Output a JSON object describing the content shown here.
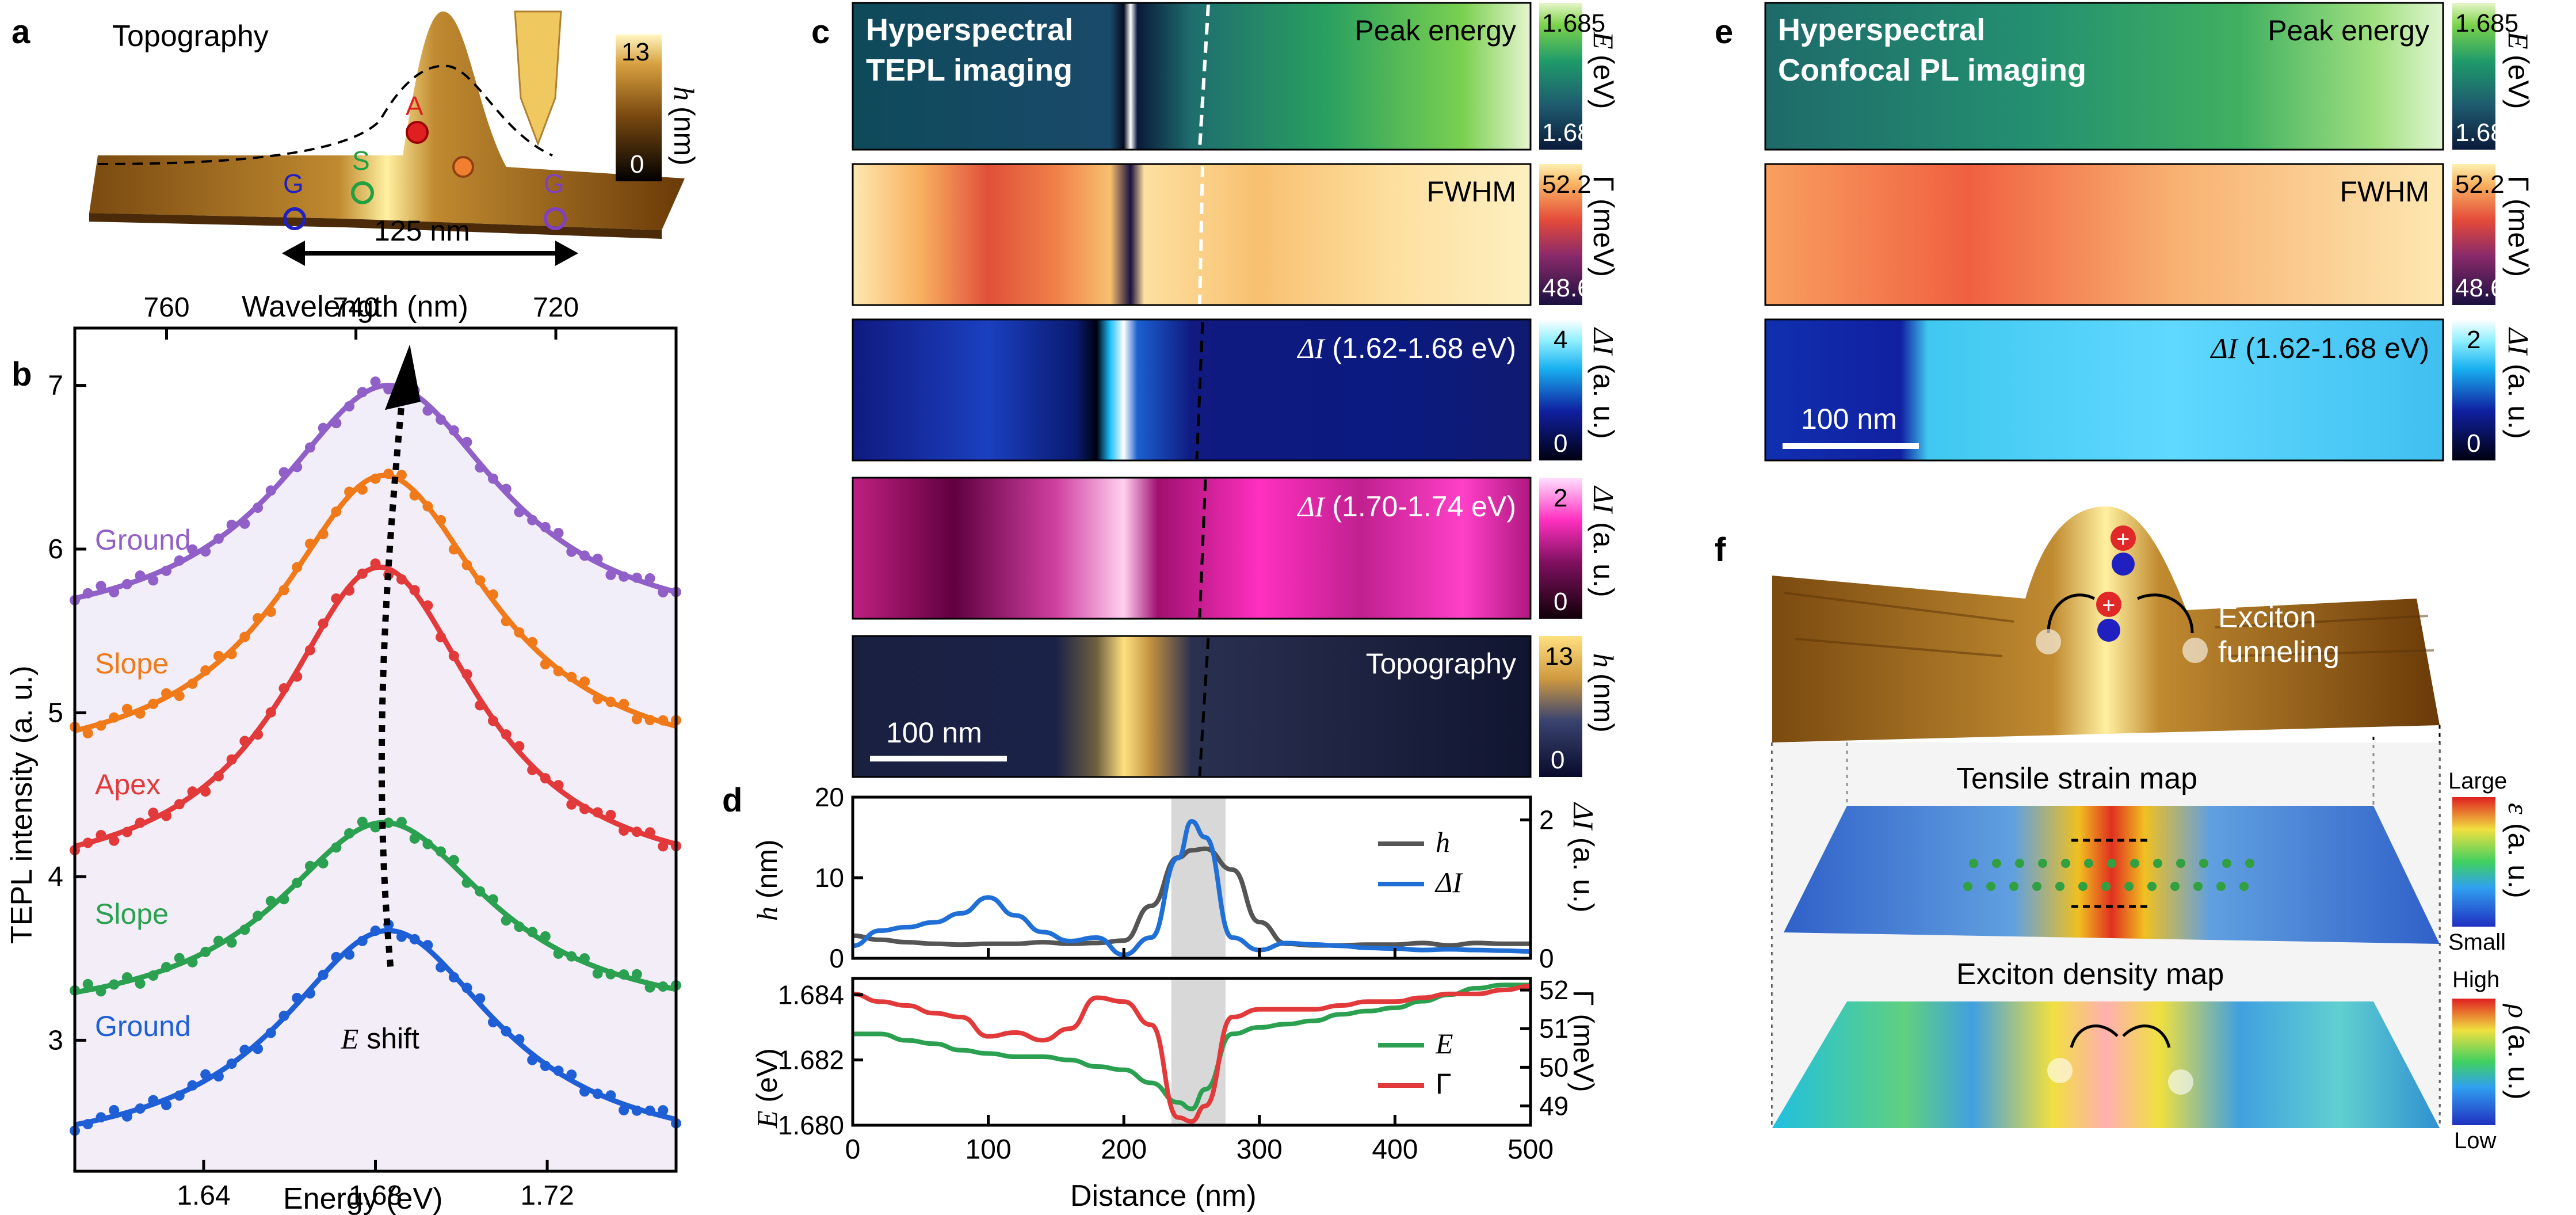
{
  "panels": {
    "a": "a",
    "b": "b",
    "c": "c",
    "d": "d",
    "e": "e",
    "f": "f"
  },
  "panel_a": {
    "title": "Topography",
    "point_labels": {
      "apex": "A",
      "slope": "S",
      "ground": "G",
      "ground2": "G"
    },
    "scale": "125 nm",
    "colorbar": {
      "max": "13",
      "min": "0",
      "label": "h",
      "unit": "(nm)"
    }
  },
  "panel_b": {
    "top_axis_title": "Wavelength (nm)",
    "top_ticks": [
      "760",
      "740",
      "720"
    ],
    "bottom_axis_title": "Energy (eV)",
    "bottom_ticks": [
      "1.64",
      "1.68",
      "1.72"
    ],
    "y_axis_title": "TEPL intensity (a. u.)",
    "y_ticks": [
      "3",
      "4",
      "5",
      "6",
      "7"
    ],
    "curve_labels": [
      "Ground",
      "Slope",
      "Apex",
      "Slope",
      "Ground"
    ],
    "shift_label": {
      "sym": "E",
      "text": " shift"
    }
  },
  "panel_c": {
    "title_line1": "Hyperspectral",
    "title_line2": "TEPL imaging",
    "maps": [
      {
        "label": "Peak energy",
        "cb_max": "1.685",
        "cb_min": "1.680",
        "cb_sym": "E",
        "cb_unit": "(eV)"
      },
      {
        "label": "FWHM",
        "cb_max": "52.2",
        "cb_min": "48.6",
        "cb_sym": "Γ",
        "cb_unit": "(meV)"
      },
      {
        "label_sym": "ΔI",
        "label": " (1.62-1.68 eV)",
        "cb_max": "4",
        "cb_min": "0",
        "cb_sym": "ΔI",
        "cb_unit": "(a. u.)"
      },
      {
        "label_sym": "ΔI",
        "label": " (1.70-1.74 eV)",
        "cb_max": "2",
        "cb_min": "0",
        "cb_sym": "ΔI",
        "cb_unit": "(a. u.)"
      },
      {
        "label": "Topography",
        "cb_max": "13",
        "cb_min": "0",
        "cb_sym": "h",
        "cb_unit": "(nm)"
      }
    ],
    "scale": "100 nm"
  },
  "panel_d": {
    "x_axis_title": "Distance (nm)",
    "x_ticks": [
      "0",
      "100",
      "200",
      "300",
      "400",
      "500"
    ],
    "top_left_title": "h (nm)",
    "top_left_ticks": [
      "0",
      "10",
      "20"
    ],
    "top_right_title": "ΔI (a. u.)",
    "top_right_ticks": [
      "0",
      "2"
    ],
    "bottom_left_title": "E (eV)",
    "bottom_left_ticks": [
      "1.680",
      "1.682",
      "1.684"
    ],
    "bottom_right_title": "Γ (meV)",
    "bottom_right_ticks": [
      "49",
      "50",
      "51",
      "52"
    ],
    "legend_top": [
      "h",
      "ΔI"
    ],
    "legend_bottom": [
      "E",
      "Γ"
    ]
  },
  "panel_e": {
    "title_line1": "Hyperspectral",
    "title_line2": "Confocal PL imaging",
    "maps": [
      {
        "label": "Peak energy",
        "cb_max": "1.685",
        "cb_min": "1.680",
        "cb_sym": "E",
        "cb_unit": "(eV)"
      },
      {
        "label": "FWHM",
        "cb_max": "52.2",
        "cb_min": "48.6",
        "cb_sym": "Γ",
        "cb_unit": "(meV)"
      },
      {
        "label_sym": "ΔI",
        "label": " (1.62-1.68 eV)",
        "cb_max": "2",
        "cb_min": "0",
        "cb_sym": "ΔI",
        "cb_unit": "(a. u.)"
      }
    ],
    "scale": "100 nm"
  },
  "panel_f": {
    "funnel": "Exciton",
    "funnel2": "funneling",
    "strain_title": "Tensile strain map",
    "density_title": "Exciton density map",
    "cb1": {
      "max": "Large",
      "min": "Small",
      "sym": "ε",
      "unit": "(a. u.)"
    },
    "cb2": {
      "max": "High",
      "min": "Low",
      "sym": "ρ",
      "unit": "(a. u.)"
    }
  },
  "chart_data": [
    {
      "type": "scatter",
      "title": "",
      "xlabel": "Energy (eV)",
      "ylabel": "TEPL intensity (a. u.)",
      "xlim": [
        1.61,
        1.75
      ],
      "ylim": [
        2.2,
        7.35
      ],
      "top_axis": {
        "label": "Wavelength (nm)",
        "ticks": [
          760,
          740,
          720
        ]
      },
      "series": [
        {
          "name": "Ground",
          "baseline": 2.27,
          "peak_amp": 1.4,
          "center": 1.683,
          "width": 0.031,
          "color": "#1f5fd6",
          "fill": "#e8eef9"
        },
        {
          "name": "Slope",
          "baseline": 3.1,
          "peak_amp": 1.23,
          "center": 1.682,
          "width": 0.031,
          "color": "#2aa050",
          "fill": "#eaf5ec"
        },
        {
          "name": "Apex",
          "baseline": 3.92,
          "peak_amp": 1.97,
          "center": 1.681,
          "width": 0.028,
          "color": "#e23a3a",
          "fill": "#fbecec"
        },
        {
          "name": "Slope",
          "baseline": 4.62,
          "peak_amp": 1.83,
          "center": 1.682,
          "width": 0.03,
          "color": "#f07a1a",
          "fill": "#fdf0e4"
        },
        {
          "name": "Ground",
          "baseline": 5.45,
          "peak_amp": 1.55,
          "center": 1.683,
          "width": 0.032,
          "color": "#9060c8",
          "fill": "#f1ecf8"
        }
      ]
    },
    {
      "type": "line",
      "title": "",
      "xlabel": "Distance (nm)",
      "x": [
        0,
        20,
        40,
        60,
        80,
        100,
        120,
        140,
        160,
        180,
        200,
        220,
        240,
        250,
        260,
        280,
        300,
        320,
        340,
        360,
        380,
        400,
        420,
        440,
        460,
        480,
        500
      ],
      "series": [
        {
          "name": "h",
          "axis": "left",
          "unit": "nm",
          "ylim": [
            0,
            20
          ],
          "color": "#555555",
          "values": [
            2.8,
            2.3,
            2.0,
            1.8,
            1.7,
            1.8,
            1.8,
            2.0,
            1.8,
            1.9,
            2.2,
            6.5,
            12.5,
            13.4,
            13.6,
            11.0,
            4.5,
            1.8,
            1.6,
            1.6,
            1.7,
            1.7,
            1.9,
            1.6,
            1.9,
            1.8,
            1.8
          ]
        },
        {
          "name": "ΔI",
          "axis": "right",
          "unit": "a. u.",
          "ylim": [
            0,
            2.33
          ],
          "color": "#1f6fd6",
          "values": [
            0.18,
            0.4,
            0.45,
            0.52,
            0.65,
            0.88,
            0.62,
            0.38,
            0.25,
            0.3,
            0.05,
            0.3,
            1.45,
            1.98,
            1.75,
            0.3,
            0.12,
            0.22,
            0.2,
            0.18,
            0.15,
            0.14,
            0.12,
            0.13,
            0.12,
            0.11,
            0.1
          ]
        },
        {
          "name": "E",
          "axis": "left",
          "unit": "eV",
          "ylim": [
            1.68,
            1.6845
          ],
          "color": "#2aa050",
          "values": [
            1.6828,
            1.6828,
            1.6826,
            1.6825,
            1.6823,
            1.6822,
            1.6821,
            1.6821,
            1.682,
            1.6818,
            1.6817,
            1.6813,
            1.6807,
            1.6805,
            1.6811,
            1.6828,
            1.683,
            1.6831,
            1.6832,
            1.6834,
            1.6835,
            1.6836,
            1.6838,
            1.684,
            1.6842,
            1.6843,
            1.6843
          ]
        },
        {
          "name": "Γ",
          "axis": "right",
          "unit": "meV",
          "ylim": [
            48.5,
            52.3
          ],
          "color": "#e23a3a",
          "values": [
            51.9,
            51.7,
            51.6,
            51.4,
            51.3,
            50.8,
            50.9,
            50.7,
            51.0,
            51.8,
            51.7,
            51.1,
            48.7,
            48.6,
            49.0,
            51.3,
            51.5,
            51.5,
            51.5,
            51.6,
            51.7,
            51.7,
            51.8,
            51.9,
            51.9,
            52.0,
            52.1
          ]
        }
      ],
      "highlight_band": [
        235,
        275
      ]
    }
  ]
}
